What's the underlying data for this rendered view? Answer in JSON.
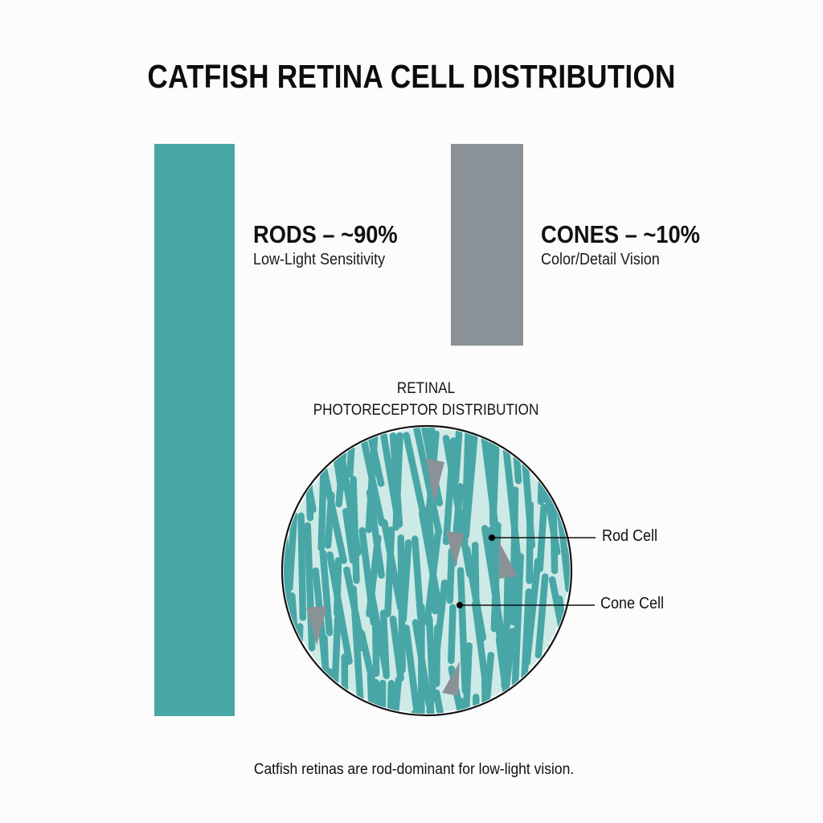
{
  "title": "CATFISH RETINA CELL DISTRIBUTION",
  "colors": {
    "rods": "#48a6a6",
    "cones": "#8a9297",
    "retina_background": "#cdeae6",
    "background": "#fcfcfc",
    "text": "#111111"
  },
  "rods": {
    "heading": "RODS – ~90%",
    "subtitle": "Low-Light Sensitivity"
  },
  "cones": {
    "heading": "CONES – ~10%",
    "subtitle": "Color/Detail Vision"
  },
  "diagram": {
    "title_line1": "RETINAL",
    "title_line2": "PHOTORECEPTOR DISTRIBUTION",
    "callouts": [
      {
        "label": "Rod Cell",
        "dot": [
          612,
          669
        ],
        "line_end": [
          741,
          669
        ]
      },
      {
        "label": "Cone Cell",
        "dot": [
          572,
          753
        ],
        "line_end": [
          740,
          753
        ]
      }
    ],
    "cone_cells": [
      {
        "x": [
          530,
          553,
          540
        ],
        "y": [
          570,
          575,
          626
        ]
      },
      {
        "x": [
          555,
          578,
          566
        ],
        "y": [
          661,
          664,
          706
        ]
      },
      {
        "x": [
          620,
          644,
          621
        ],
        "y": [
          672,
          717,
          720
        ]
      },
      {
        "x": [
          381,
          407,
          394
        ],
        "y": [
          756,
          754,
          803
        ]
      },
      {
        "x": [
          550,
          572,
          570
        ],
        "y": [
          862,
          823,
          866
        ]
      }
    ]
  },
  "caption": "Catfish retinas are rod-dominant for low-light vision.",
  "chart_data": {
    "type": "bar",
    "title": "CATFISH RETINA CELL DISTRIBUTION",
    "categories": [
      "Rods",
      "Cones"
    ],
    "values": [
      90,
      10
    ],
    "unit": "%",
    "annotations": [
      "Low-Light Sensitivity",
      "Color/Detail Vision"
    ]
  }
}
